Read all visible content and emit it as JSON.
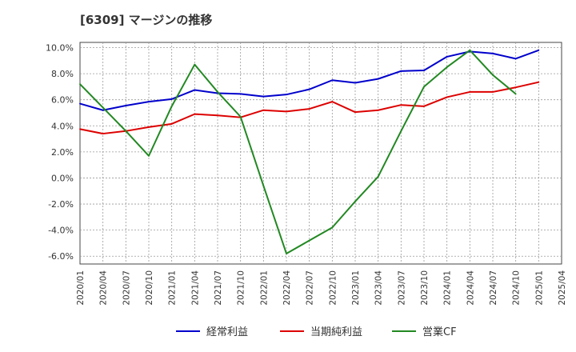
{
  "chart_data": {
    "type": "line",
    "title": "[6309]  マージンの推移",
    "xlabel": "",
    "ylabel": "",
    "x": [
      "2020/01",
      "2020/04",
      "2020/07",
      "2020/10",
      "2021/01",
      "2021/04",
      "2021/07",
      "2021/10",
      "2022/01",
      "2022/04",
      "2022/07",
      "2022/10",
      "2023/01",
      "2023/04",
      "2023/07",
      "2023/10",
      "2024/01",
      "2024/04",
      "2024/07",
      "2024/10",
      "2025/01",
      "2025/04"
    ],
    "ylim": [
      -6.6,
      10.4
    ],
    "yticks": [
      10,
      8,
      6,
      4,
      2,
      0,
      -2,
      -4,
      -6
    ],
    "ytick_labels": [
      "10.0%",
      "8.0%",
      "6.0%",
      "4.0%",
      "2.0%",
      "0.0%",
      "-2.0%",
      "-4.0%",
      "-6.0%"
    ],
    "grid": true,
    "legend_position": "bottom",
    "series": [
      {
        "name": "経常利益",
        "color": "#0000cc",
        "values": [
          5.7,
          5.2,
          5.55,
          5.85,
          6.05,
          6.75,
          6.5,
          6.45,
          6.25,
          6.4,
          6.8,
          7.5,
          7.3,
          7.6,
          8.2,
          8.25,
          9.3,
          9.7,
          9.55,
          9.15,
          9.8,
          null
        ]
      },
      {
        "name": "当期純利益",
        "color": "#dd0000",
        "values": [
          3.75,
          3.4,
          3.6,
          3.9,
          4.15,
          4.9,
          4.8,
          4.65,
          5.2,
          5.1,
          5.3,
          5.85,
          5.05,
          5.2,
          5.6,
          5.5,
          6.2,
          6.6,
          6.6,
          6.95,
          7.35,
          null
        ]
      },
      {
        "name": "営業CF",
        "color": "#228822",
        "values": [
          7.2,
          5.4,
          3.6,
          1.7,
          5.5,
          8.7,
          6.6,
          4.7,
          -0.6,
          -5.8,
          -4.8,
          -3.8,
          -1.8,
          0.1,
          3.6,
          7.0,
          8.5,
          9.8,
          7.9,
          6.45,
          null,
          null
        ]
      }
    ]
  }
}
